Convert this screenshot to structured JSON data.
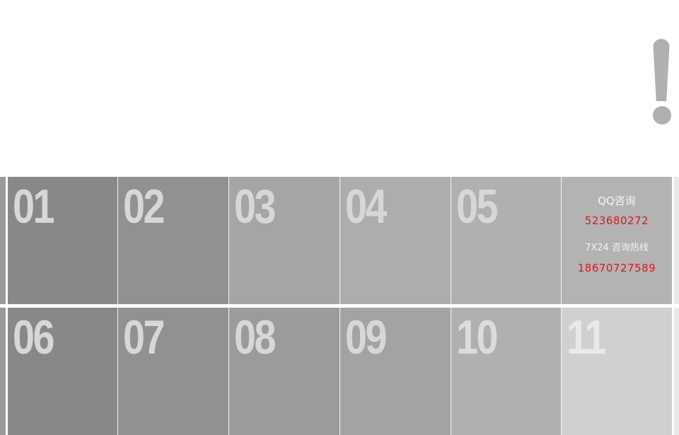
{
  "colors": {
    "tile_shades": [
      "#888888",
      "#919191",
      "#a5a5a5",
      "#adadad",
      "#b0b0b0",
      "#d0d0d0"
    ],
    "row2_shades": [
      "#888888",
      "#919191",
      "#9b9b9b",
      "#a3a3a3",
      "#b0b0b0",
      "#d0d0d0"
    ],
    "number_text": "#d7d7d7",
    "accent_red": "#e0151f",
    "exclamation": "#b0b0b0"
  },
  "decor": {
    "exclamation_icon": "exclamation-icon"
  },
  "row1": {
    "tiles": [
      {
        "label": "01"
      },
      {
        "label": "02"
      },
      {
        "label": "03"
      },
      {
        "label": "04"
      },
      {
        "label": "05"
      }
    ]
  },
  "contact": {
    "qq_label": "QQ咨询",
    "qq_number": "523680272",
    "hotline_label": "7X24 咨询热线",
    "hotline_number": "18670727589"
  },
  "row2": {
    "tiles": [
      {
        "label": "06"
      },
      {
        "label": "07"
      },
      {
        "label": "08"
      },
      {
        "label": "09"
      },
      {
        "label": "10"
      },
      {
        "label": "11"
      }
    ]
  }
}
